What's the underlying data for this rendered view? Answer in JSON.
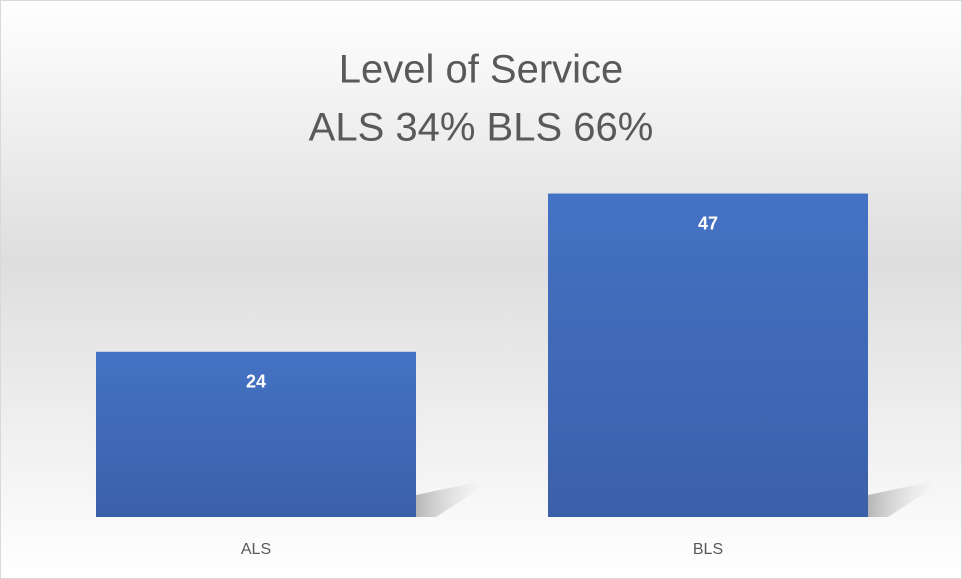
{
  "chart_data": {
    "type": "bar",
    "title": [
      "Level of Service",
      "ALS 34% BLS 66%"
    ],
    "categories": [
      "ALS",
      "BLS"
    ],
    "values": [
      24,
      47
    ],
    "color": "#4472c4",
    "ylim": [
      0,
      50
    ]
  }
}
